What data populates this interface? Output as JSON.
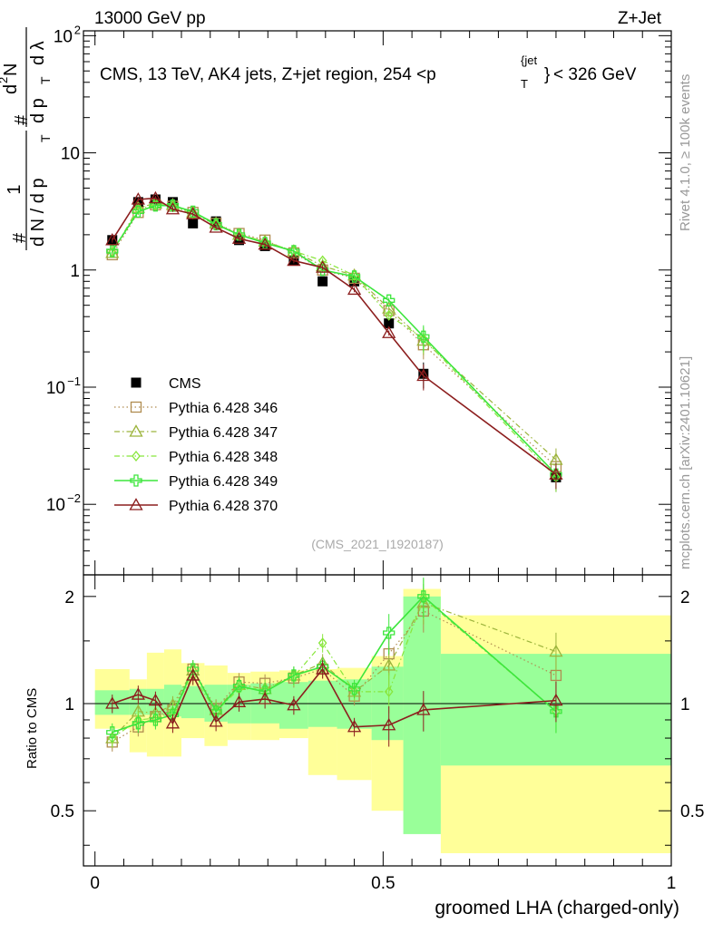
{
  "header": {
    "left": "13000 GeV pp",
    "right": "Z+Jet",
    "title_main": "CMS, 13 TeV, AK4 jets, Z+jet region, 254 <p",
    "title_sub": "T",
    "title_sup": "{jet",
    "title_sup2": "}",
    "title_end": "< 326 GeV",
    "analysis_id": "(CMS_2021_I1920187)"
  },
  "side": {
    "rivet": "Rivet 4.1.0, ≥ 100k events",
    "mcplots": "mcplots.cern.ch [arXiv:2401.10621]"
  },
  "yaxis_main": {
    "hash1": "#",
    "one": "1",
    "dN_over": "d N / d p",
    "dN_sub": "T",
    "hash2": "#",
    "d2N": "d",
    "d2N_sup": "2",
    "d2N_N": "N",
    "dptdl": "d p",
    "dptdl_sub": "T",
    "dlambda": "d λ"
  },
  "yaxis_ratio_label": "Ratio to CMS",
  "xaxis_label": "groomed LHA (charged-only)",
  "colors": {
    "cms": "#000000",
    "p346": "#b08c50",
    "p347": "#9cb43c",
    "p348": "#88e63c",
    "p349": "#3ce63c",
    "p370": "#8c1e1e",
    "band_yellow": "#ffff99",
    "band_green": "#99ff99"
  },
  "chart_data": [
    {
      "type": "line",
      "title": "CMS, 13 TeV, AK4 jets, Z+jet region, 254 < pT jet < 326 GeV",
      "xlabel": "groomed LHA (charged-only)",
      "ylabel": "1/dN/dpT  d2N/dpT dλ",
      "xlim": [
        -0.02,
        1.0
      ],
      "ylim": [
        0.0025,
        110
      ],
      "yscale": "log",
      "yticks": [
        {
          "v": 0.01,
          "b": "10",
          "e": "−2"
        },
        {
          "v": 0.1,
          "b": "10",
          "e": "−1"
        },
        {
          "v": 1,
          "b": "1",
          "e": ""
        },
        {
          "v": 10,
          "b": "10",
          "e": ""
        },
        {
          "v": 100,
          "b": "10",
          "e": "2"
        }
      ],
      "x": [
        0.03,
        0.075,
        0.105,
        0.135,
        0.17,
        0.21,
        0.25,
        0.295,
        0.345,
        0.395,
        0.45,
        0.51,
        0.57,
        0.8
      ],
      "series": [
        {
          "name": "CMS",
          "key": "cms",
          "marker": "filled-square",
          "dash": "none",
          "values": [
            1.8,
            3.8,
            4.0,
            3.8,
            2.5,
            2.6,
            1.8,
            1.6,
            1.2,
            0.8,
            0.8,
            0.35,
            0.13,
            0.017
          ]
        },
        {
          "name": "Pythia 6.428 346",
          "key": "p346",
          "marker": "open-square",
          "dash": "dotted",
          "values": [
            1.35,
            3.1,
            3.6,
            3.5,
            3.1,
            2.5,
            2.05,
            1.8,
            1.4,
            1.0,
            0.85,
            0.45,
            0.23,
            0.021
          ]
        },
        {
          "name": "Pythia 6.428 347",
          "key": "p347",
          "marker": "open-triangle",
          "dash": "dashdot",
          "values": [
            1.4,
            3.4,
            3.7,
            3.6,
            3.1,
            2.5,
            2.0,
            1.75,
            1.45,
            1.08,
            0.9,
            0.47,
            0.25,
            0.024
          ]
        },
        {
          "name": "Pythia 6.428 348",
          "key": "p348",
          "marker": "open-diamond",
          "dash": "dashdot",
          "values": [
            1.42,
            3.3,
            3.6,
            3.5,
            3.0,
            2.45,
            2.0,
            1.75,
            1.45,
            1.2,
            0.9,
            0.41,
            0.26,
            0.017
          ]
        },
        {
          "name": "Pythia 6.428 349",
          "key": "p349",
          "marker": "open-cross",
          "dash": "solid",
          "values": [
            1.45,
            3.15,
            3.55,
            3.55,
            3.15,
            2.45,
            2.0,
            1.7,
            1.45,
            1.0,
            0.88,
            0.55,
            0.27,
            0.018
          ]
        },
        {
          "name": "Pythia 6.428 370",
          "key": "p370",
          "marker": "open-triangle",
          "dash": "solid",
          "values": [
            1.8,
            4.0,
            4.1,
            3.3,
            3.0,
            2.3,
            1.85,
            1.65,
            1.2,
            1.05,
            0.68,
            0.29,
            0.125,
            0.018
          ]
        }
      ],
      "legend_placement": "middle-left"
    },
    {
      "type": "line",
      "title": "Ratio to CMS",
      "xlabel": "groomed LHA (charged-only)",
      "ylabel": "Ratio to CMS",
      "xlim": [
        -0.02,
        1.0
      ],
      "ylim": [
        0.35,
        2.3
      ],
      "yticks": [
        0.5,
        1,
        2
      ],
      "xticks": [
        0,
        0.5,
        1
      ],
      "x": [
        0.03,
        0.075,
        0.105,
        0.135,
        0.17,
        0.21,
        0.25,
        0.295,
        0.345,
        0.395,
        0.45,
        0.51,
        0.57,
        0.8
      ],
      "bands": {
        "edges": [
          0.0,
          0.06,
          0.09,
          0.12,
          0.15,
          0.19,
          0.23,
          0.27,
          0.32,
          0.37,
          0.42,
          0.48,
          0.535,
          0.6,
          1.0
        ],
        "yellow": [
          [
            0.85,
            1.25
          ],
          [
            0.73,
            1.17
          ],
          [
            0.71,
            1.39
          ],
          [
            0.71,
            1.42
          ],
          [
            0.8,
            1.3
          ],
          [
            0.76,
            1.28
          ],
          [
            0.79,
            1.22
          ],
          [
            0.79,
            1.23
          ],
          [
            0.8,
            1.24
          ],
          [
            0.63,
            1.25
          ],
          [
            0.61,
            1.26
          ],
          [
            0.5,
            1.36
          ],
          [
            0.46,
            2.1
          ],
          [
            0.38,
            1.77
          ]
        ],
        "green": [
          [
            0.93,
            1.09
          ],
          [
            0.93,
            1.1
          ],
          [
            0.93,
            1.1
          ],
          [
            0.92,
            1.13
          ],
          [
            0.91,
            1.12
          ],
          [
            0.89,
            1.13
          ],
          [
            0.88,
            1.13
          ],
          [
            0.88,
            1.14
          ],
          [
            0.85,
            1.15
          ],
          [
            0.86,
            1.16
          ],
          [
            0.85,
            1.17
          ],
          [
            0.79,
            1.27
          ],
          [
            0.43,
            2.0
          ],
          [
            0.67,
            1.38
          ]
        ]
      },
      "series": [
        {
          "name": "Pythia 6.428 346",
          "key": "p346",
          "values": [
            0.78,
            0.86,
            0.92,
            0.96,
            1.25,
            0.97,
            1.15,
            1.14,
            1.18,
            1.25,
            1.05,
            1.38,
            1.82,
            1.2
          ]
        },
        {
          "name": "Pythia 6.428 347",
          "key": "p347",
          "values": [
            0.8,
            0.95,
            0.94,
            0.99,
            1.24,
            0.96,
            1.13,
            1.1,
            1.2,
            1.3,
            1.08,
            1.28,
            1.92,
            1.4
          ]
        },
        {
          "name": "Pythia 6.428 348",
          "key": "p348",
          "values": [
            0.8,
            0.9,
            0.91,
            0.95,
            1.2,
            0.95,
            1.1,
            1.1,
            1.19,
            1.48,
            1.08,
            1.08,
            1.98,
            0.95
          ]
        },
        {
          "name": "Pythia 6.428 349",
          "key": "p349",
          "values": [
            0.83,
            0.88,
            0.9,
            0.93,
            1.25,
            0.95,
            1.12,
            1.08,
            1.2,
            1.27,
            1.1,
            1.58,
            2.0,
            0.95
          ]
        },
        {
          "name": "Pythia 6.428 370",
          "key": "p370",
          "values": [
            1.0,
            1.06,
            1.02,
            0.88,
            1.2,
            0.89,
            1.01,
            1.03,
            0.99,
            1.25,
            0.86,
            0.87,
            0.96,
            1.02
          ]
        }
      ]
    }
  ]
}
